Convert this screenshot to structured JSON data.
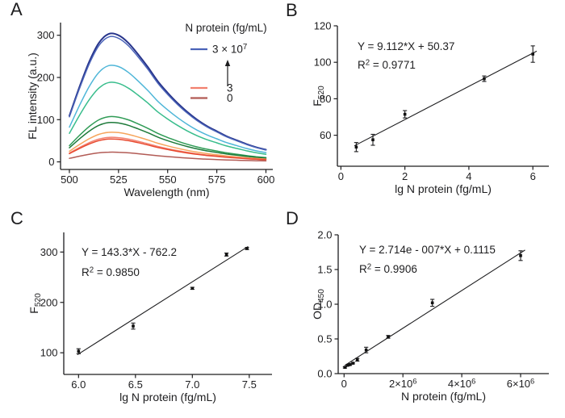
{
  "chart_data": [
    {
      "panel_label": "A",
      "type": "line",
      "xlabel": "Wavelength (nm)",
      "ylabel": [
        {
          "t": "FL intensity (a.u.)"
        }
      ],
      "xlim": [
        495.5,
        603.5
      ],
      "ylim": [
        -18,
        330
      ],
      "xticks": {
        "values": [
          500,
          525,
          550,
          575,
          600
        ],
        "labels": [
          "500",
          "525",
          "550",
          "575",
          "600"
        ]
      },
      "yticks": {
        "values": [
          0,
          100,
          200,
          300
        ],
        "labels": [
          "0",
          "100",
          "200",
          "300"
        ]
      },
      "grid": false,
      "x": [
        500,
        505,
        510,
        515,
        520,
        525,
        530,
        535,
        540,
        545,
        550,
        555,
        560,
        565,
        570,
        575,
        580,
        585,
        590,
        595,
        600
      ],
      "series": [
        {
          "name": "navy",
          "color": "#27348b",
          "width": 2.0,
          "values": [
            109.1,
            175.7,
            236.3,
            281.8,
            303,
            300.0,
            281.8,
            254.5,
            224.2,
            190.9,
            163.6,
            139.4,
            118.2,
            100.0,
            84.8,
            72.7,
            60.6,
            51.5,
            42.4,
            34.8,
            28.8
          ]
        },
        {
          "name": "blue",
          "color": "#4a63b8",
          "width": 1.5,
          "values": [
            106.6,
            171.7,
            230.9,
            275.3,
            296,
            293.0,
            275.3,
            248.6,
            219.0,
            186.5,
            159.8,
            136.2,
            115.4,
            97.7,
            82.9,
            71.0,
            59.2,
            50.3,
            41.4,
            34.0,
            28.1
          ]
        },
        {
          "name": "cyan",
          "color": "#4fb6d8",
          "width": 1.5,
          "values": [
            82.1,
            132.2,
            177.8,
            212.0,
            228,
            225.7,
            212.0,
            191.5,
            168.7,
            143.6,
            123.1,
            104.9,
            88.9,
            75.2,
            63.8,
            54.7,
            45.6,
            38.8,
            31.9,
            26.2,
            21.7
          ]
        },
        {
          "name": "spring-green",
          "color": "#38bd8c",
          "width": 1.5,
          "values": [
            67.7,
            109.0,
            146.6,
            174.8,
            188,
            186.1,
            174.8,
            157.9,
            139.1,
            118.4,
            101.5,
            86.5,
            73.3,
            62.0,
            52.6,
            45.1,
            37.6,
            32.0,
            26.3,
            21.6,
            17.9
          ]
        },
        {
          "name": "green",
          "color": "#2f9b55",
          "width": 1.5,
          "values": [
            38.5,
            62.1,
            83.5,
            99.5,
            107,
            105.9,
            99.5,
            89.9,
            79.2,
            67.4,
            57.8,
            49.2,
            41.7,
            35.3,
            30.0,
            25.7,
            21.4,
            18.2,
            15.0,
            12.3,
            10.2
          ]
        },
        {
          "name": "dark-green",
          "color": "#1e7a3a",
          "width": 1.5,
          "values": [
            33.5,
            53.9,
            72.5,
            86.5,
            93,
            92.1,
            86.5,
            78.1,
            68.8,
            58.6,
            50.2,
            42.8,
            36.3,
            30.7,
            26.0,
            22.3,
            18.6,
            15.8,
            13.0,
            10.7,
            8.8
          ]
        },
        {
          "name": "orange",
          "color": "#f6a55c",
          "width": 1.5,
          "values": [
            25.2,
            40.6,
            54.6,
            65.1,
            70,
            69.3,
            65.1,
            58.8,
            51.8,
            44.1,
            37.8,
            32.2,
            27.3,
            23.1,
            19.6,
            16.8,
            14.0,
            11.9,
            9.8,
            8.1,
            6.7
          ]
        },
        {
          "name": "salmon",
          "color": "#f2806e",
          "width": 1.5,
          "values": [
            20.9,
            33.6,
            45.2,
            53.9,
            58,
            57.4,
            53.9,
            48.7,
            42.9,
            36.5,
            31.3,
            26.7,
            22.6,
            19.1,
            16.2,
            13.9,
            11.6,
            9.9,
            8.1,
            6.7,
            5.5
          ]
        },
        {
          "name": "red",
          "color": "#e8492f",
          "width": 1.5,
          "values": [
            19.4,
            31.3,
            42.1,
            50.2,
            54,
            53.5,
            50.2,
            45.4,
            40.0,
            34.0,
            29.2,
            24.8,
            21.1,
            17.8,
            15.1,
            13.0,
            10.8,
            9.2,
            7.6,
            6.2,
            5.1
          ]
        },
        {
          "name": "dark-red",
          "color": "#b25b55",
          "width": 1.5,
          "values": [
            8.3,
            13.3,
            17.9,
            21.4,
            23,
            22.8,
            21.4,
            19.3,
            17.0,
            14.5,
            12.4,
            10.6,
            9.0,
            7.6,
            6.4,
            5.5,
            4.6,
            3.9,
            3.2,
            2.6,
            2.2
          ]
        }
      ],
      "legend": {
        "title": "N protein (fg/mL)",
        "entries": [
          {
            "label": [
              {
                "t": "3 × 10"
              },
              {
                "t": "7",
                "sup": true
              }
            ],
            "color": "#4a63b8"
          },
          {
            "label": [
              {
                "t": "3"
              }
            ],
            "color": "#f2806e"
          },
          {
            "label": [
              {
                "t": "0"
              }
            ],
            "color": "#b25b55"
          }
        ],
        "arrow": "up"
      }
    },
    {
      "panel_label": "B",
      "type": "scatter",
      "equation": "Y = 9.112*X + 50.37",
      "r2": [
        {
          "t": "R"
        },
        {
          "t": "2",
          "sup": true
        },
        {
          "t": " = 0.9771"
        }
      ],
      "xlabel": "lg N protein (fg/mL)",
      "ylabel": [
        {
          "t": "F"
        },
        {
          "t": "520",
          "sub": true
        }
      ],
      "xlim": [
        -0.11,
        6.5
      ],
      "ylim": [
        43,
        120
      ],
      "xticks": {
        "values": [
          0,
          2,
          4,
          6
        ],
        "labels": [
          "0",
          "2",
          "4",
          "6"
        ]
      },
      "yticks": {
        "values": [
          60,
          80,
          100,
          120
        ],
        "labels": [
          "60",
          "80",
          "100",
          "120"
        ]
      },
      "grid": false,
      "points": {
        "x": [
          0.48,
          1.0,
          2.0,
          4.48,
          6.0
        ],
        "y": [
          53.5,
          57.5,
          71.5,
          91.0,
          104.5
        ],
        "err": [
          2.5,
          3.0,
          2.0,
          1.5,
          4.5
        ]
      },
      "fit": {
        "slope": 9.112,
        "intercept": 50.37,
        "x_start": 0.42,
        "x_end": 6.12
      }
    },
    {
      "panel_label": "C",
      "type": "scatter",
      "equation": "Y = 143.3*X - 762.2",
      "r2": [
        {
          "t": "R"
        },
        {
          "t": "2",
          "sup": true
        },
        {
          "t": " = 0.9850"
        }
      ],
      "xlabel": "lg N protein (fg/mL)",
      "ylabel": [
        {
          "t": "F"
        },
        {
          "t": "520",
          "sub": true
        }
      ],
      "xlim": [
        5.87,
        7.7
      ],
      "ylim": [
        57,
        339
      ],
      "xticks": {
        "values": [
          6.0,
          6.5,
          7.0,
          7.5
        ],
        "labels": [
          "6.0",
          "6.5",
          "7.0",
          "7.5"
        ]
      },
      "yticks": {
        "values": [
          100,
          200,
          300
        ],
        "labels": [
          "100",
          "200",
          "300"
        ]
      },
      "grid": false,
      "points": {
        "x": [
          6.0,
          6.48,
          7.0,
          7.3,
          7.48
        ],
        "y": [
          103,
          153,
          228,
          295,
          307
        ],
        "err": [
          5,
          6,
          2,
          3,
          2
        ]
      },
      "fit": {
        "slope": 143.3,
        "intercept": -762.2,
        "x_start": 5.99,
        "x_end": 7.49
      }
    },
    {
      "panel_label": "D",
      "type": "scatter",
      "equation": "Y = 2.714e - 007*X + 0.1115",
      "r2": [
        {
          "t": "R"
        },
        {
          "t": "2",
          "sup": true
        },
        {
          "t": " = 0.9906"
        }
      ],
      "xlabel": "N protein (fg/mL)",
      "ylabel": [
        {
          "t": "OD"
        },
        {
          "t": "450",
          "sub": true
        }
      ],
      "xlim": [
        -200000,
        6960000
      ],
      "ylim": [
        0,
        2.0
      ],
      "xticks": {
        "values": [
          0,
          2000000,
          4000000,
          6000000
        ],
        "labels": [
          "0",
          [
            {
              "t": "2×10"
            },
            {
              "t": "6",
              "sup": true
            }
          ],
          [
            {
              "t": "4×10"
            },
            {
              "t": "6",
              "sup": true
            }
          ],
          [
            {
              "t": "6×10"
            },
            {
              "t": "6",
              "sup": true
            }
          ]
        ]
      },
      "yticks": {
        "values": [
          0.0,
          0.5,
          1.0,
          1.5,
          2.0
        ],
        "labels": [
          "0.0",
          "0.5",
          "1.0",
          "1.5",
          "2.0"
        ]
      },
      "grid": false,
      "points": {
        "x": [
          30000,
          120000,
          200000,
          300000,
          450000,
          750000,
          1500000,
          3000000,
          6000000
        ],
        "y": [
          0.09,
          0.12,
          0.13,
          0.15,
          0.2,
          0.34,
          0.53,
          1.02,
          1.7
        ],
        "err": [
          0.01,
          0.01,
          0.01,
          0.01,
          0.02,
          0.04,
          0.02,
          0.05,
          0.07
        ]
      },
      "fit": {
        "slope": 2.714e-07,
        "intercept": 0.1115,
        "x_start": 20000,
        "x_end": 6150000
      }
    }
  ],
  "colors": {
    "ink": "#1d1d1f",
    "background": "#ffffff"
  }
}
